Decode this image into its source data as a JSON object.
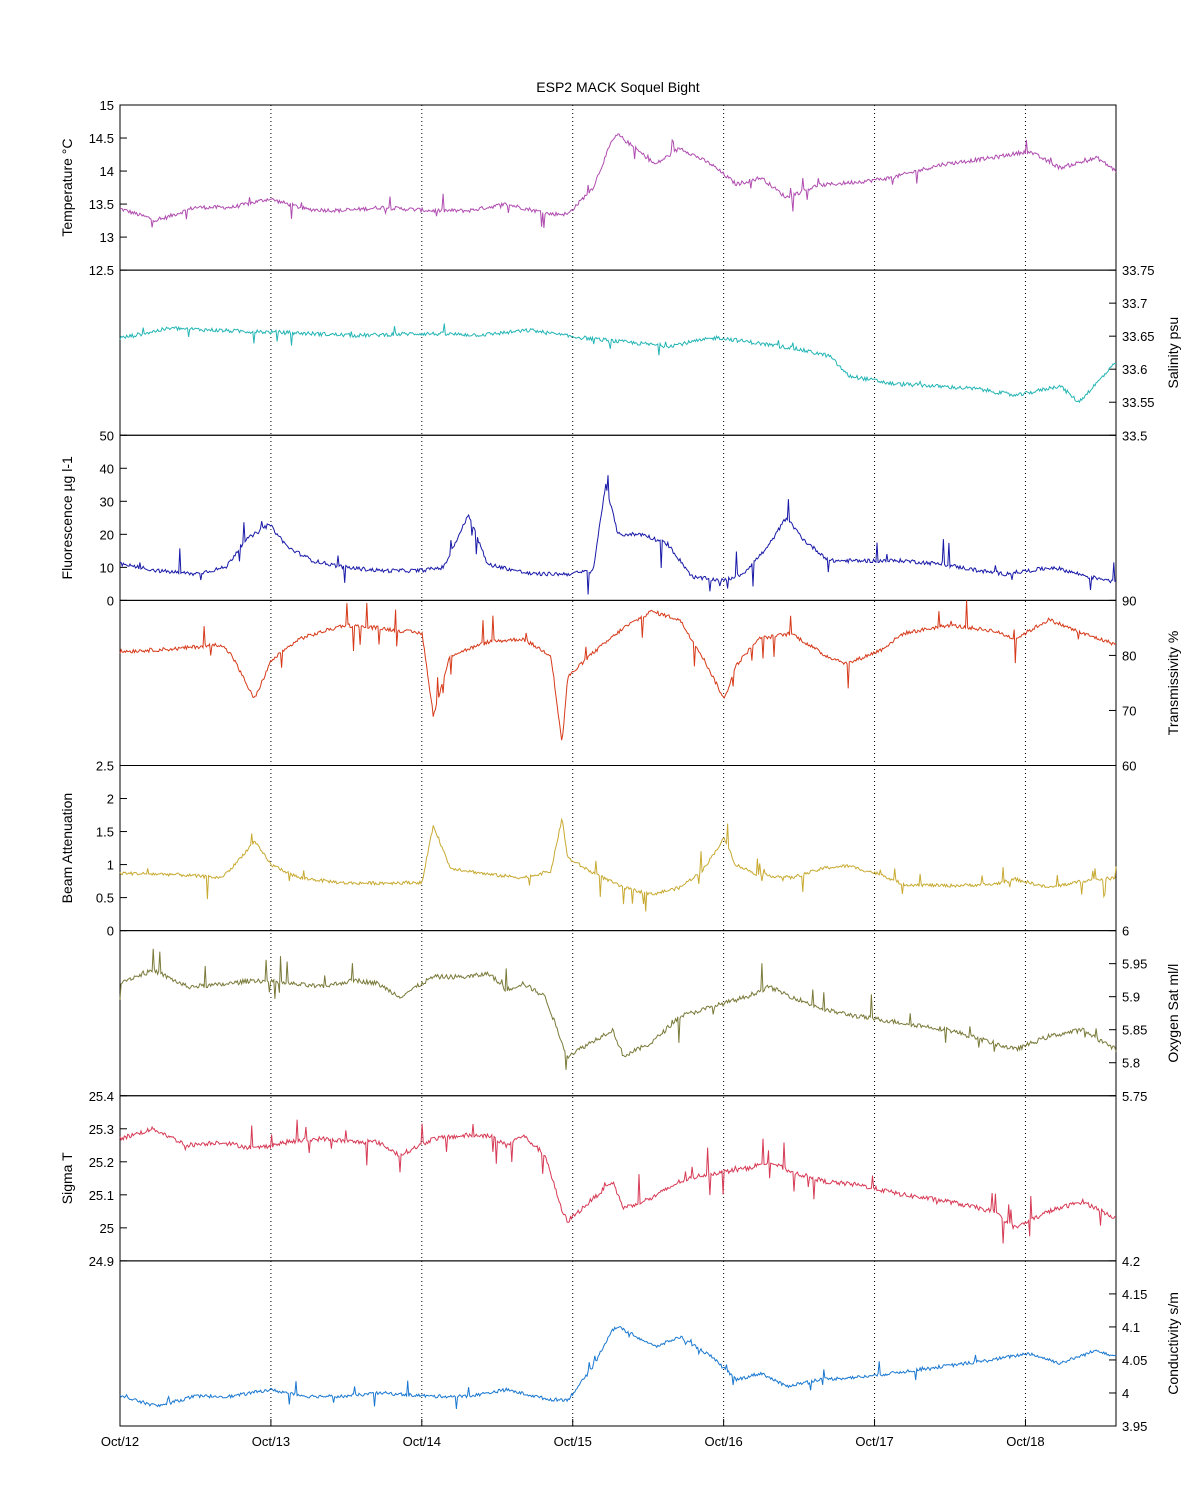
{
  "chart_data": {
    "type": "line",
    "title": "ESP2 MACK  Soquel Bight",
    "x_tick_labels": [
      "Oct/12",
      "Oct/13",
      "Oct/14",
      "Oct/15",
      "Oct/16",
      "Oct/17",
      "Oct/18"
    ],
    "x_range_days": [
      0,
      6.6
    ],
    "grid": "vertical dotted lines at daily ticks",
    "panels": [
      {
        "name": "temperature",
        "label": "Temperature °C",
        "label_side": "left",
        "color": "#b04db0",
        "ylim": [
          12.5,
          15
        ],
        "yticks": [
          12.5,
          13,
          13.5,
          14,
          14.5,
          15
        ],
        "noise": 0.03,
        "spike": 0.25,
        "spike_prob": 0.04,
        "anchors": [
          [
            0,
            13.43
          ],
          [
            0.3,
            13.25
          ],
          [
            0.6,
            13.45
          ],
          [
            0.9,
            13.45
          ],
          [
            1.2,
            13.58
          ],
          [
            1.5,
            13.42
          ],
          [
            1.8,
            13.4
          ],
          [
            2.1,
            13.45
          ],
          [
            2.5,
            13.4
          ],
          [
            2.8,
            13.4
          ],
          [
            3.1,
            13.5
          ],
          [
            3.45,
            13.35
          ],
          [
            3.6,
            13.35
          ],
          [
            3.8,
            13.75
          ],
          [
            3.95,
            14.45
          ],
          [
            4.0,
            14.55
          ],
          [
            4.3,
            14.1
          ],
          [
            4.5,
            14.35
          ],
          [
            4.75,
            14.1
          ],
          [
            4.95,
            13.8
          ],
          [
            5.15,
            13.9
          ],
          [
            5.35,
            13.6
          ],
          [
            5.6,
            13.78
          ],
          [
            6.0,
            13.85
          ],
          [
            6.2,
            13.9
          ],
          [
            6.6,
            14.1
          ],
          [
            7.0,
            14.2
          ],
          [
            7.3,
            14.3
          ],
          [
            7.55,
            14.05
          ],
          [
            7.85,
            14.2
          ],
          [
            8.0,
            14.0
          ]
        ]
      },
      {
        "name": "salinity",
        "label": "Salinity psu",
        "label_side": "right",
        "color": "#25b5b5",
        "ylim": [
          33.5,
          33.75
        ],
        "yticks": [
          33.5,
          33.55,
          33.6,
          33.65,
          33.7,
          33.75
        ],
        "noise": 0.003,
        "spike": 0.02,
        "spike_prob": 0.02,
        "anchors": [
          [
            0,
            33.647
          ],
          [
            0.4,
            33.662
          ],
          [
            0.9,
            33.658
          ],
          [
            1.4,
            33.655
          ],
          [
            1.9,
            33.651
          ],
          [
            2.4,
            33.654
          ],
          [
            2.9,
            33.652
          ],
          [
            3.3,
            33.659
          ],
          [
            3.6,
            33.65
          ],
          [
            4.0,
            33.642
          ],
          [
            4.4,
            33.635
          ],
          [
            4.8,
            33.648
          ],
          [
            5.1,
            33.64
          ],
          [
            5.4,
            33.632
          ],
          [
            5.7,
            33.62
          ],
          [
            5.85,
            33.59
          ],
          [
            6.0,
            33.585
          ],
          [
            6.2,
            33.578
          ],
          [
            6.5,
            33.575
          ],
          [
            6.9,
            33.57
          ],
          [
            7.2,
            33.56
          ],
          [
            7.55,
            33.575
          ],
          [
            7.7,
            33.55
          ],
          [
            8.0,
            33.61
          ]
        ]
      },
      {
        "name": "fluorescence",
        "label": "Fluorescence µg l-1",
        "label_side": "left",
        "color": "#1a1aa8",
        "ylim": [
          0,
          50
        ],
        "yticks": [
          0,
          10,
          20,
          30,
          40,
          50
        ],
        "noise": 0.6,
        "spike": 8,
        "spike_prob": 0.03,
        "anchors": [
          [
            0,
            11
          ],
          [
            0.3,
            9
          ],
          [
            0.6,
            8
          ],
          [
            0.85,
            10
          ],
          [
            1.0,
            18
          ],
          [
            1.2,
            23
          ],
          [
            1.35,
            16
          ],
          [
            1.55,
            12
          ],
          [
            1.8,
            10
          ],
          [
            2.1,
            9
          ],
          [
            2.4,
            9
          ],
          [
            2.6,
            10
          ],
          [
            2.8,
            26
          ],
          [
            2.95,
            11
          ],
          [
            3.3,
            8
          ],
          [
            3.6,
            8
          ],
          [
            3.8,
            9
          ],
          [
            3.9,
            35
          ],
          [
            4.0,
            20
          ],
          [
            4.2,
            20
          ],
          [
            4.4,
            17
          ],
          [
            4.6,
            7
          ],
          [
            4.85,
            6
          ],
          [
            5.0,
            8
          ],
          [
            5.2,
            16
          ],
          [
            5.35,
            25
          ],
          [
            5.5,
            18
          ],
          [
            5.7,
            12
          ],
          [
            6.0,
            12
          ],
          [
            6.3,
            12
          ],
          [
            6.6,
            11
          ],
          [
            6.9,
            9
          ],
          [
            7.1,
            8
          ],
          [
            7.5,
            10
          ],
          [
            7.8,
            7
          ],
          [
            8.0,
            6
          ]
        ]
      },
      {
        "name": "transmissivity",
        "label": "Transmissivity %",
        "label_side": "right",
        "color": "#d63a1a",
        "ylim": [
          60,
          90
        ],
        "yticks": [
          60,
          70,
          80,
          90
        ],
        "noise": 0.35,
        "spike": 5,
        "spike_prob": 0.03,
        "anchors": [
          [
            0,
            80.7
          ],
          [
            0.5,
            81.2
          ],
          [
            0.9,
            82
          ],
          [
            1.0,
            80
          ],
          [
            1.2,
            72
          ],
          [
            1.35,
            79
          ],
          [
            1.6,
            83
          ],
          [
            2.0,
            85.5
          ],
          [
            2.3,
            85
          ],
          [
            2.7,
            84
          ],
          [
            2.8,
            69
          ],
          [
            2.95,
            80
          ],
          [
            3.3,
            82.5
          ],
          [
            3.6,
            83
          ],
          [
            3.85,
            80
          ],
          [
            3.95,
            64
          ],
          [
            4.0,
            76
          ],
          [
            4.2,
            80
          ],
          [
            4.5,
            85
          ],
          [
            4.75,
            88
          ],
          [
            5.0,
            86.5
          ],
          [
            5.2,
            80
          ],
          [
            5.4,
            72
          ],
          [
            5.5,
            78
          ],
          [
            5.7,
            83
          ],
          [
            6.0,
            84
          ],
          [
            6.3,
            80
          ],
          [
            6.5,
            78.5
          ],
          [
            6.8,
            81
          ],
          [
            7.0,
            84
          ],
          [
            7.4,
            85.5
          ],
          [
            7.8,
            84.5
          ],
          [
            8.0,
            83
          ],
          [
            8.3,
            86.5
          ],
          [
            8.6,
            84
          ],
          [
            8.9,
            82
          ]
        ]
      },
      {
        "name": "beam_attenuation",
        "label": "Beam Attenuation",
        "label_side": "left",
        "color": "#c8aa32",
        "ylim": [
          0,
          2.5
        ],
        "yticks": [
          0,
          0.5,
          1,
          1.5,
          2,
          2.5
        ],
        "noise": 0.025,
        "spike": 0.35,
        "spike_prob": 0.03,
        "anchors": [
          [
            0,
            0.87
          ],
          [
            0.5,
            0.85
          ],
          [
            0.9,
            0.8
          ],
          [
            1.0,
            0.95
          ],
          [
            1.2,
            1.35
          ],
          [
            1.35,
            1.0
          ],
          [
            1.6,
            0.8
          ],
          [
            2.0,
            0.72
          ],
          [
            2.3,
            0.72
          ],
          [
            2.7,
            0.73
          ],
          [
            2.8,
            1.6
          ],
          [
            2.95,
            0.95
          ],
          [
            3.3,
            0.85
          ],
          [
            3.6,
            0.8
          ],
          [
            3.85,
            0.9
          ],
          [
            3.95,
            1.7
          ],
          [
            4.0,
            1.1
          ],
          [
            4.2,
            0.9
          ],
          [
            4.5,
            0.65
          ],
          [
            4.75,
            0.55
          ],
          [
            5.0,
            0.65
          ],
          [
            5.2,
            0.9
          ],
          [
            5.4,
            1.4
          ],
          [
            5.5,
            1.0
          ],
          [
            5.7,
            0.85
          ],
          [
            6.0,
            0.8
          ],
          [
            6.3,
            0.95
          ],
          [
            6.5,
            0.98
          ],
          [
            6.8,
            0.85
          ],
          [
            7.0,
            0.7
          ],
          [
            7.4,
            0.68
          ],
          [
            7.8,
            0.7
          ],
          [
            8.0,
            0.78
          ],
          [
            8.3,
            0.65
          ],
          [
            8.6,
            0.75
          ],
          [
            8.9,
            0.8
          ]
        ]
      },
      {
        "name": "oxygen_sat",
        "label": "Oxygen Sat ml/l",
        "label_side": "right",
        "color": "#7a7a3a",
        "ylim": [
          5.75,
          6
        ],
        "yticks": [
          5.75,
          5.8,
          5.85,
          5.9,
          5.95,
          6
        ],
        "noise": 0.0035,
        "spike": 0.04,
        "spike_prob": 0.04,
        "anchors": [
          [
            0,
            5.922
          ],
          [
            0.3,
            5.94
          ],
          [
            0.6,
            5.915
          ],
          [
            0.9,
            5.918
          ],
          [
            1.2,
            5.925
          ],
          [
            1.5,
            5.92
          ],
          [
            1.8,
            5.915
          ],
          [
            2.1,
            5.925
          ],
          [
            2.3,
            5.92
          ],
          [
            2.5,
            5.9
          ],
          [
            2.8,
            5.93
          ],
          [
            3.1,
            5.93
          ],
          [
            3.3,
            5.935
          ],
          [
            3.45,
            5.91
          ],
          [
            3.6,
            5.92
          ],
          [
            3.8,
            5.9
          ],
          [
            3.95,
            5.83
          ],
          [
            4.0,
            5.81
          ],
          [
            4.2,
            5.83
          ],
          [
            4.4,
            5.85
          ],
          [
            4.5,
            5.81
          ],
          [
            4.75,
            5.83
          ],
          [
            5.0,
            5.87
          ],
          [
            5.2,
            5.88
          ],
          [
            5.4,
            5.89
          ],
          [
            5.6,
            5.9
          ],
          [
            5.8,
            5.915
          ],
          [
            6.0,
            5.9
          ],
          [
            6.3,
            5.88
          ],
          [
            6.6,
            5.87
          ],
          [
            7.0,
            5.86
          ],
          [
            7.4,
            5.85
          ],
          [
            7.8,
            5.83
          ],
          [
            8.0,
            5.82
          ],
          [
            8.3,
            5.84
          ],
          [
            8.6,
            5.85
          ],
          [
            8.9,
            5.82
          ]
        ]
      },
      {
        "name": "sigma_t",
        "label": "Sigma T",
        "label_side": "left",
        "color": "#d63a55",
        "ylim": [
          24.9,
          25.4
        ],
        "yticks": [
          24.9,
          25,
          25.1,
          25.2,
          25.3,
          25.4
        ],
        "noise": 0.007,
        "spike": 0.08,
        "spike_prob": 0.04,
        "anchors": [
          [
            0,
            25.27
          ],
          [
            0.3,
            25.3
          ],
          [
            0.6,
            25.25
          ],
          [
            0.9,
            25.26
          ],
          [
            1.2,
            25.24
          ],
          [
            1.5,
            25.26
          ],
          [
            1.8,
            25.27
          ],
          [
            2.1,
            25.26
          ],
          [
            2.3,
            25.26
          ],
          [
            2.5,
            25.22
          ],
          [
            2.8,
            25.27
          ],
          [
            3.1,
            25.28
          ],
          [
            3.3,
            25.28
          ],
          [
            3.45,
            25.25
          ],
          [
            3.6,
            25.28
          ],
          [
            3.8,
            25.22
          ],
          [
            3.95,
            25.05
          ],
          [
            4.0,
            25.02
          ],
          [
            4.2,
            25.08
          ],
          [
            4.4,
            25.14
          ],
          [
            4.5,
            25.06
          ],
          [
            4.75,
            25.09
          ],
          [
            5.0,
            25.14
          ],
          [
            5.2,
            25.16
          ],
          [
            5.4,
            25.17
          ],
          [
            5.6,
            25.18
          ],
          [
            5.8,
            25.2
          ],
          [
            6.0,
            25.17
          ],
          [
            6.3,
            25.14
          ],
          [
            6.6,
            25.13
          ],
          [
            7.0,
            25.1
          ],
          [
            7.4,
            25.08
          ],
          [
            7.8,
            25.05
          ],
          [
            8.0,
            25.0
          ],
          [
            8.3,
            25.05
          ],
          [
            8.6,
            25.08
          ],
          [
            8.9,
            25.03
          ]
        ]
      },
      {
        "name": "conductivity",
        "label": "Conductivity s/m",
        "label_side": "right",
        "color": "#1a78d0",
        "ylim": [
          3.95,
          4.2
        ],
        "yticks": [
          3.95,
          4,
          4.05,
          4.1,
          4.15,
          4.2
        ],
        "noise": 0.0025,
        "spike": 0.02,
        "spike_prob": 0.04,
        "anchors": [
          [
            0,
            3.995
          ],
          [
            0.3,
            3.98
          ],
          [
            0.6,
            3.995
          ],
          [
            0.9,
            3.995
          ],
          [
            1.2,
            4.005
          ],
          [
            1.5,
            3.995
          ],
          [
            1.8,
            3.995
          ],
          [
            2.1,
            4.0
          ],
          [
            2.5,
            3.995
          ],
          [
            2.8,
            3.995
          ],
          [
            3.1,
            4.005
          ],
          [
            3.45,
            3.99
          ],
          [
            3.6,
            3.99
          ],
          [
            3.8,
            4.04
          ],
          [
            3.95,
            4.095
          ],
          [
            4.0,
            4.1
          ],
          [
            4.3,
            4.07
          ],
          [
            4.5,
            4.085
          ],
          [
            4.75,
            4.055
          ],
          [
            4.95,
            4.02
          ],
          [
            5.15,
            4.03
          ],
          [
            5.35,
            4.01
          ],
          [
            5.6,
            4.02
          ],
          [
            6.0,
            4.025
          ],
          [
            6.2,
            4.03
          ],
          [
            6.6,
            4.04
          ],
          [
            7.0,
            4.05
          ],
          [
            7.3,
            4.06
          ],
          [
            7.55,
            4.045
          ],
          [
            7.85,
            4.065
          ],
          [
            8.0,
            4.055
          ]
        ]
      }
    ]
  }
}
